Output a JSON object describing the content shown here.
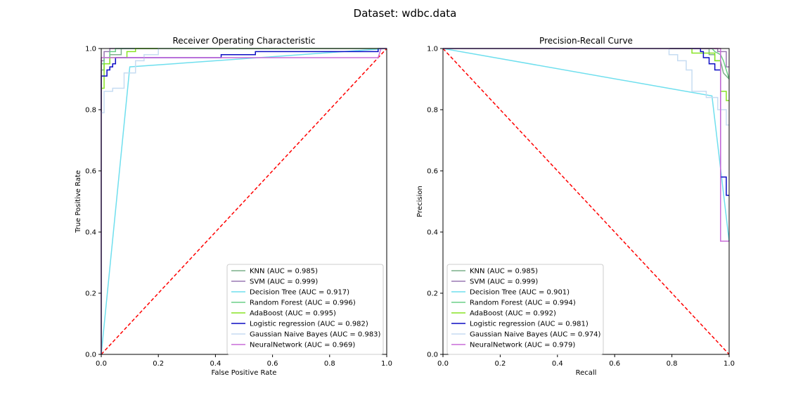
{
  "figure": {
    "suptitle": "Dataset: wdbc.data"
  },
  "chart_data": [
    {
      "type": "line",
      "title": "Receiver Operating Characteristic",
      "xlabel": "False Positive Rate",
      "ylabel": "True Positive Rate",
      "xlim": [
        0,
        1
      ],
      "ylim": [
        0,
        1
      ],
      "xticks": [
        "0.0",
        "0.2",
        "0.4",
        "0.6",
        "0.8",
        "1.0"
      ],
      "yticks": [
        "0.0",
        "0.2",
        "0.4",
        "0.6",
        "0.8",
        "1.0"
      ],
      "legend_position": "lower-right",
      "baseline": {
        "points": [
          [
            0,
            0
          ],
          [
            1,
            1
          ]
        ],
        "color": "#ff0000",
        "style": "dashed"
      },
      "series": [
        {
          "name": "KNN (AUC = 0.985)",
          "color": "#7cb08a",
          "points": [
            [
              0,
              0
            ],
            [
              0,
              0.93
            ],
            [
              0.01,
              0.93
            ],
            [
              0.01,
              0.95
            ],
            [
              0.03,
              0.95
            ],
            [
              0.03,
              0.98
            ],
            [
              0.07,
              0.98
            ],
            [
              0.07,
              1.0
            ],
            [
              1,
              1.0
            ]
          ]
        },
        {
          "name": "SVM (AUC = 0.999)",
          "color": "#9a78b3",
          "points": [
            [
              0,
              0
            ],
            [
              0,
              0.96
            ],
            [
              0.01,
              0.96
            ],
            [
              0.01,
              0.99
            ],
            [
              0.03,
              0.99
            ],
            [
              0.03,
              1.0
            ],
            [
              1,
              1.0
            ]
          ]
        },
        {
          "name": "Decision Tree (AUC = 0.917)",
          "color": "#6fdfee",
          "points": [
            [
              0,
              0
            ],
            [
              0.1,
              0.94
            ],
            [
              1,
              1.0
            ]
          ]
        },
        {
          "name": "Random Forest (AUC = 0.996)",
          "color": "#6ccf87",
          "points": [
            [
              0,
              0
            ],
            [
              0,
              0.95
            ],
            [
              0.01,
              0.95
            ],
            [
              0.01,
              0.97
            ],
            [
              0.03,
              0.97
            ],
            [
              0.03,
              0.99
            ],
            [
              0.05,
              0.99
            ],
            [
              0.05,
              1.0
            ],
            [
              1,
              1.0
            ]
          ]
        },
        {
          "name": "AdaBoost (AUC = 0.995)",
          "color": "#88e425",
          "points": [
            [
              0,
              0
            ],
            [
              0,
              0.87
            ],
            [
              0.01,
              0.87
            ],
            [
              0.01,
              0.95
            ],
            [
              0.03,
              0.95
            ],
            [
              0.03,
              0.97
            ],
            [
              0.09,
              0.97
            ],
            [
              0.09,
              0.99
            ],
            [
              0.12,
              0.99
            ],
            [
              0.12,
              1.0
            ],
            [
              1,
              1.0
            ]
          ]
        },
        {
          "name": "Logistic regression (AUC = 0.982)",
          "color": "#0c0cc4",
          "points": [
            [
              0,
              0
            ],
            [
              0,
              0.91
            ],
            [
              0.02,
              0.91
            ],
            [
              0.02,
              0.93
            ],
            [
              0.03,
              0.93
            ],
            [
              0.03,
              0.94
            ],
            [
              0.04,
              0.94
            ],
            [
              0.04,
              0.95
            ],
            [
              0.05,
              0.95
            ],
            [
              0.05,
              0.97
            ],
            [
              0.42,
              0.97
            ],
            [
              0.42,
              0.98
            ],
            [
              0.54,
              0.98
            ],
            [
              0.54,
              0.99
            ],
            [
              0.97,
              0.99
            ],
            [
              0.97,
              1.0
            ],
            [
              1,
              1.0
            ]
          ]
        },
        {
          "name": "Gaussian Naive Bayes (AUC = 0.983)",
          "color": "#c6dcf2",
          "points": [
            [
              0,
              0
            ],
            [
              0,
              0.79
            ],
            [
              0.01,
              0.79
            ],
            [
              0.01,
              0.86
            ],
            [
              0.04,
              0.86
            ],
            [
              0.04,
              0.87
            ],
            [
              0.08,
              0.87
            ],
            [
              0.08,
              0.92
            ],
            [
              0.12,
              0.92
            ],
            [
              0.12,
              0.96
            ],
            [
              0.15,
              0.96
            ],
            [
              0.15,
              0.98
            ],
            [
              0.2,
              0.98
            ],
            [
              0.2,
              1.0
            ],
            [
              1,
              1.0
            ]
          ]
        },
        {
          "name": "NeuralNetwork (AUC = 0.969)",
          "color": "#c96bd8",
          "points": [
            [
              0,
              0
            ],
            [
              0,
              0.97
            ],
            [
              0.97,
              0.97
            ],
            [
              0.98,
              1.0
            ],
            [
              1,
              1.0
            ]
          ]
        }
      ]
    },
    {
      "type": "line",
      "title": "Precision-Recall Curve",
      "xlabel": "Recall",
      "ylabel": "Precision",
      "xlim": [
        0,
        1
      ],
      "ylim": [
        0,
        1
      ],
      "xticks": [
        "0.0",
        "0.2",
        "0.4",
        "0.6",
        "0.8",
        "1.0"
      ],
      "yticks": [
        "0.0",
        "0.2",
        "0.4",
        "0.6",
        "0.8",
        "1.0"
      ],
      "legend_position": "lower-left",
      "baseline": {
        "points": [
          [
            0,
            1
          ],
          [
            1,
            0
          ]
        ],
        "color": "#ff0000",
        "style": "dashed"
      },
      "series": [
        {
          "name": "KNN (AUC = 0.985)",
          "color": "#7cb08a",
          "points": [
            [
              0,
              1.0
            ],
            [
              0.93,
              1.0
            ],
            [
              0.93,
              0.98
            ],
            [
              0.95,
              0.98
            ],
            [
              0.95,
              0.96
            ],
            [
              0.97,
              0.96
            ],
            [
              0.98,
              0.92
            ],
            [
              1,
              0.9
            ]
          ]
        },
        {
          "name": "SVM (AUC = 0.999)",
          "color": "#9a78b3",
          "points": [
            [
              0,
              1.0
            ],
            [
              0.96,
              1.0
            ],
            [
              0.96,
              0.99
            ],
            [
              0.99,
              0.99
            ],
            [
              0.99,
              0.94
            ],
            [
              1,
              0.94
            ]
          ]
        },
        {
          "name": "Decision Tree (AUC = 0.901)",
          "color": "#6fdfee",
          "points": [
            [
              0,
              1.0
            ],
            [
              0.94,
              0.845
            ],
            [
              1,
              0.37
            ]
          ]
        },
        {
          "name": "Random Forest (AUC = 0.994)",
          "color": "#6ccf87",
          "points": [
            [
              0,
              1.0
            ],
            [
              0.94,
              1.0
            ],
            [
              0.95,
              0.99
            ],
            [
              0.97,
              0.98
            ],
            [
              0.98,
              0.96
            ],
            [
              0.99,
              0.93
            ],
            [
              1,
              0.9
            ]
          ]
        },
        {
          "name": "AdaBoost (AUC = 0.992)",
          "color": "#88e425",
          "points": [
            [
              0,
              1.0
            ],
            [
              0.87,
              1.0
            ],
            [
              0.87,
              0.985
            ],
            [
              0.95,
              0.985
            ],
            [
              0.95,
              0.96
            ],
            [
              0.97,
              0.96
            ],
            [
              0.97,
              0.86
            ],
            [
              0.99,
              0.86
            ],
            [
              0.99,
              0.83
            ],
            [
              1,
              0.83
            ]
          ]
        },
        {
          "name": "Logistic regression (AUC = 0.981)",
          "color": "#0c0cc4",
          "points": [
            [
              0,
              1.0
            ],
            [
              0.9,
              1.0
            ],
            [
              0.9,
              0.99
            ],
            [
              0.91,
              0.99
            ],
            [
              0.91,
              0.97
            ],
            [
              0.93,
              0.97
            ],
            [
              0.93,
              0.95
            ],
            [
              0.95,
              0.95
            ],
            [
              0.95,
              0.93
            ],
            [
              0.97,
              0.93
            ],
            [
              0.97,
              0.58
            ],
            [
              0.99,
              0.58
            ],
            [
              0.99,
              0.52
            ],
            [
              1,
              0.52
            ]
          ]
        },
        {
          "name": "Gaussian Naive Bayes (AUC = 0.974)",
          "color": "#c6dcf2",
          "points": [
            [
              0,
              1.0
            ],
            [
              0.79,
              1.0
            ],
            [
              0.79,
              0.98
            ],
            [
              0.82,
              0.98
            ],
            [
              0.82,
              0.96
            ],
            [
              0.85,
              0.96
            ],
            [
              0.85,
              0.93
            ],
            [
              0.87,
              0.93
            ],
            [
              0.87,
              0.86
            ],
            [
              0.92,
              0.86
            ],
            [
              0.92,
              0.84
            ],
            [
              0.96,
              0.84
            ],
            [
              0.96,
              0.8
            ],
            [
              0.99,
              0.8
            ],
            [
              0.99,
              0.75
            ],
            [
              1,
              0.75
            ]
          ]
        },
        {
          "name": "NeuralNetwork (AUC = 0.979)",
          "color": "#c96bd8",
          "points": [
            [
              0,
              1.0
            ],
            [
              0.97,
              1.0
            ],
            [
              0.97,
              0.37
            ],
            [
              1,
              0.37
            ]
          ]
        }
      ]
    }
  ]
}
